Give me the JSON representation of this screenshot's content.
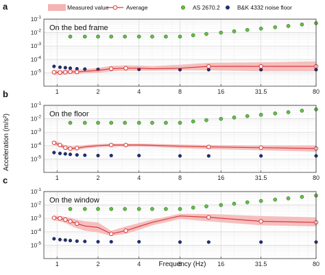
{
  "chart_data": {
    "type": "line",
    "xlabel": "Frequency (Hz)",
    "ylabel": "Acceleration (m/s²)",
    "x_scale": "log",
    "y_scale": "log",
    "xlim": [
      0.8,
      80
    ],
    "ylim": [
      1e-06,
      0.1
    ],
    "x_ticks": [
      "1",
      "2",
      "4",
      "8",
      "16",
      "31.5",
      "80"
    ],
    "x_tick_values": [
      1,
      2,
      4,
      8,
      16,
      31.5,
      80
    ],
    "y_ticks": [
      {
        "v": 0.1,
        "base": "10",
        "exp": "-1"
      },
      {
        "v": 0.01,
        "base": "10",
        "exp": "-2"
      },
      {
        "v": 0.001,
        "base": "10",
        "exp": "-3"
      },
      {
        "v": 0.0001,
        "base": "10",
        "exp": "-4"
      },
      {
        "v": 1e-05,
        "base": "10",
        "exp": "-5"
      }
    ],
    "grid": true,
    "legend": {
      "placement": "top",
      "items": [
        {
          "label": "Measured value",
          "kind": "band",
          "color": "#f4b4b4"
        },
        {
          "label": "Average",
          "kind": "line-marker",
          "color": "#d93a3a"
        },
        {
          "label": "AS 2670.2",
          "kind": "marker",
          "color": "#5cc43c"
        },
        {
          "label": "B&K 4332 noise floor",
          "kind": "marker",
          "color": "#1f2e7a"
        }
      ]
    },
    "panels": [
      {
        "letter": "a",
        "label": "On the bed frame",
        "average": {
          "x": [
            0.95,
            1.05,
            1.15,
            1.25,
            1.4,
            1.6,
            2.0,
            2.5,
            3.2,
            4.0,
            5.0,
            8.0,
            13.0,
            31.5,
            80
          ],
          "y": [
            1.1e-05,
            1.05e-05,
            1.1e-05,
            1.2e-05,
            1.15e-05,
            1.3e-05,
            1.5e-05,
            2e-05,
            2.2e-05,
            2.2e-05,
            2e-05,
            2.2e-05,
            3e-05,
            3e-05,
            3e-05
          ]
        },
        "band_low": [
          7e-06,
          7e-06,
          7.5e-06,
          8e-06,
          8e-06,
          9e-06,
          1e-05,
          1.3e-05,
          1.4e-05,
          1.4e-05,
          1.4e-05,
          1.5e-05,
          1.5e-05,
          1.3e-05,
          1.3e-05
        ],
        "band_high": [
          1.6e-05,
          1.5e-05,
          1.6e-05,
          1.7e-05,
          1.7e-05,
          1.9e-05,
          2.3e-05,
          3.3e-05,
          3.6e-05,
          3.5e-05,
          3.2e-05,
          4e-05,
          5.5e-05,
          6e-05,
          7e-05
        ],
        "average_markers_x": [
          0.95,
          1.05,
          1.15,
          1.25,
          1.4,
          2.5,
          3.2,
          13.0,
          31.5,
          80
        ],
        "as2670": {
          "x": [
            1.25,
            1.6,
            2.0,
            2.5,
            3.15,
            4.0,
            5.0,
            6.3,
            8.0,
            10,
            12.5,
            16,
            20,
            25,
            31.5,
            40,
            50,
            63,
            80
          ],
          "y": [
            0.005,
            0.005,
            0.005,
            0.005,
            0.005,
            0.005,
            0.005,
            0.005,
            0.005,
            0.0063,
            0.0079,
            0.0099,
            0.0124,
            0.0158,
            0.0198,
            0.025,
            0.031,
            0.04,
            0.05
          ]
        },
        "noise_floor": {
          "x": [
            0.95,
            1.05,
            1.15,
            1.25,
            1.4,
            1.6,
            2.0,
            2.5,
            4.0,
            8.0,
            13.0,
            31.5,
            80
          ],
          "y": [
            3e-05,
            2.6e-05,
            2.4e-05,
            2.2e-05,
            2e-05,
            1.9e-05,
            1.8e-05,
            1.8e-05,
            1.8e-05,
            1.7e-05,
            1.7e-05,
            1.7e-05,
            1.7e-05
          ]
        }
      },
      {
        "letter": "b",
        "label": "On the floor",
        "average": {
          "x": [
            0.95,
            1.05,
            1.15,
            1.25,
            1.4,
            1.6,
            2.0,
            2.5,
            3.2,
            4.0,
            5.0,
            8.0,
            13.0,
            31.5,
            80
          ],
          "y": [
            0.00016,
            0.00011,
            7e-05,
            6e-05,
            6.5e-05,
            8e-05,
            0.0001,
            0.00011,
            0.00011,
            0.00011,
            0.000105,
            9e-05,
            8e-05,
            7e-05,
            6e-05
          ]
        },
        "band_low": [
          0.00011,
          8e-05,
          5e-05,
          4.3e-05,
          4.6e-05,
          6e-05,
          7.5e-05,
          8.5e-05,
          8.5e-05,
          8.5e-05,
          8e-05,
          6.5e-05,
          5.5e-05,
          4.5e-05,
          3.5e-05
        ],
        "band_high": [
          0.00024,
          0.00016,
          0.0001,
          8.5e-05,
          9e-05,
          0.00011,
          0.00013,
          0.00014,
          0.00014,
          0.00014,
          0.000135,
          0.00012,
          0.00011,
          0.0001,
          0.0001
        ]
      },
      {
        "letter": "c",
        "label": "On the window",
        "average": {
          "x": [
            0.95,
            1.05,
            1.15,
            1.25,
            1.4,
            1.6,
            2.0,
            2.5,
            3.2,
            4.0,
            5.0,
            8.0,
            13.0,
            31.5,
            80
          ],
          "y": [
            0.0011,
            0.001,
            0.0008,
            0.0006,
            0.0004,
            0.00027,
            0.00021,
            7e-05,
            0.00012,
            0.00025,
            0.0005,
            0.0015,
            0.0012,
            0.0006,
            0.0005
          ]
        },
        "band_low": [
          0.0007,
          0.0006,
          0.00045,
          0.0003,
          0.00018,
          0.00012,
          9e-05,
          5e-05,
          7e-05,
          0.00014,
          0.0003,
          0.0009,
          0.0006,
          0.0003,
          0.00025
        ],
        "band_high": [
          0.0016,
          0.0015,
          0.0013,
          0.0011,
          0.0008,
          0.0006,
          0.0005,
          0.00012,
          0.00025,
          0.00045,
          0.0008,
          0.0022,
          0.0021,
          0.0015,
          0.0012
        ]
      }
    ]
  }
}
